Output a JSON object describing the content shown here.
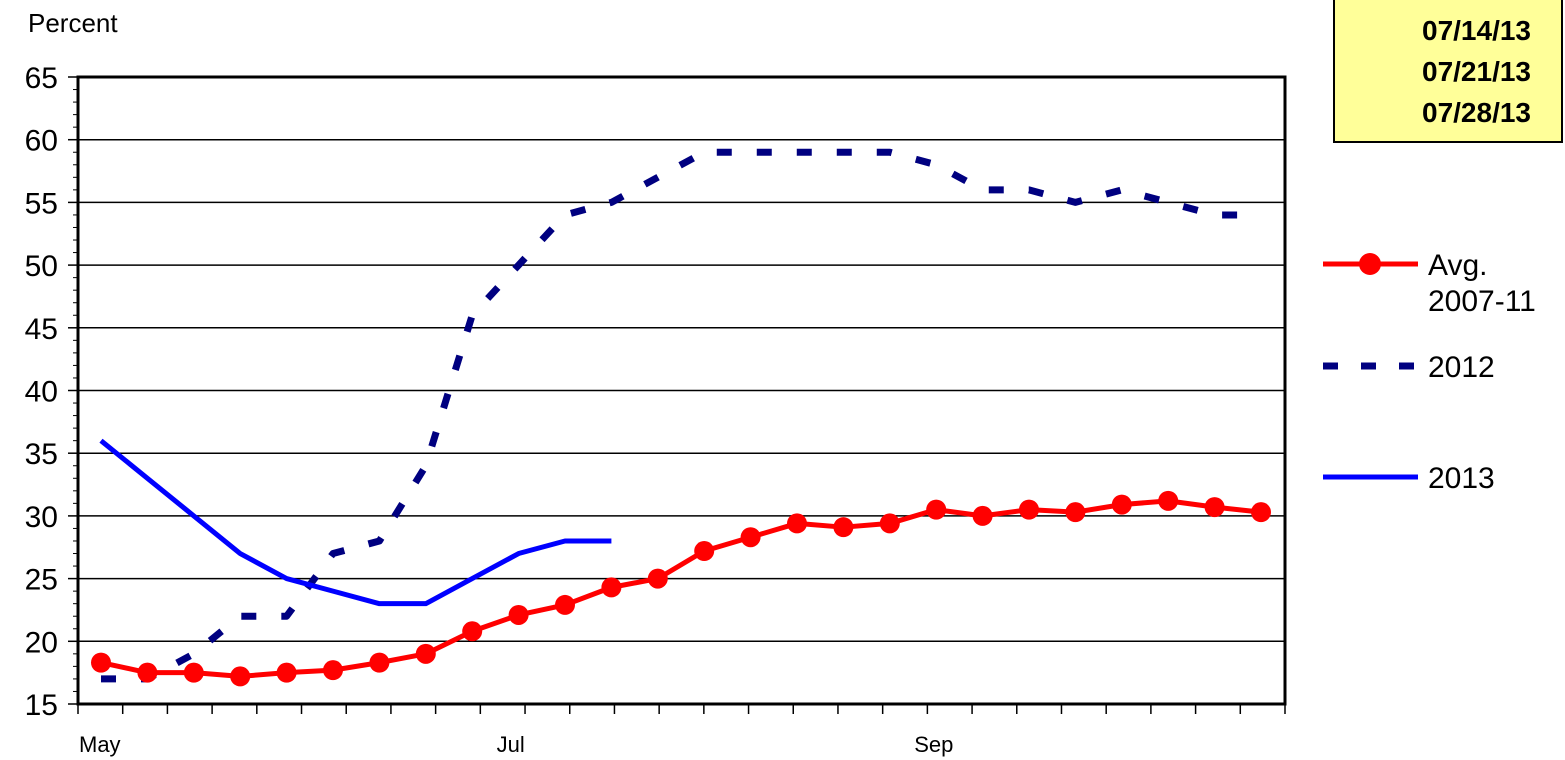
{
  "date_box": {
    "dates": [
      "07/14/13",
      "07/21/13",
      "07/28/13"
    ]
  },
  "chart_data": {
    "type": "line",
    "ylabel": "Percent",
    "ylim": [
      15,
      65
    ],
    "yticks": [
      15,
      20,
      25,
      30,
      35,
      40,
      45,
      50,
      55,
      60,
      65
    ],
    "x_count": 27,
    "x_tick_labels": [
      {
        "index": 0,
        "label": "May"
      },
      {
        "index": 9,
        "label": "Jul"
      },
      {
        "index": 18,
        "label": "Sep"
      }
    ],
    "grid": true,
    "legend_position": "right",
    "series": [
      {
        "name": "Avg. 2007-11",
        "name_lines": [
          "Avg.",
          "2007-11"
        ],
        "color": "#ff0000",
        "style": "solid-markers",
        "values": [
          18.3,
          17.5,
          17.5,
          17.2,
          17.5,
          17.7,
          18.3,
          19,
          20.8,
          22.1,
          22.9,
          24.3,
          25,
          27.2,
          28.3,
          29.4,
          29.1,
          29.4,
          30.5,
          30,
          30.5,
          30.3,
          30.9,
          31.2,
          30.7,
          30.3
        ]
      },
      {
        "name": "2012",
        "name_lines": [
          "2012"
        ],
        "color": "#000080",
        "style": "dashed",
        "values": [
          17,
          17,
          19,
          22,
          22,
          27,
          28,
          34,
          46,
          50,
          54,
          55,
          57,
          59,
          59,
          59,
          59,
          59,
          58,
          56,
          56,
          55,
          56,
          55,
          54,
          54
        ]
      },
      {
        "name": "2013",
        "name_lines": [
          "2013"
        ],
        "color": "#0000ff",
        "style": "solid",
        "values": [
          36,
          33,
          30,
          27,
          25,
          24,
          23,
          23,
          25,
          27,
          28,
          28
        ]
      }
    ]
  }
}
